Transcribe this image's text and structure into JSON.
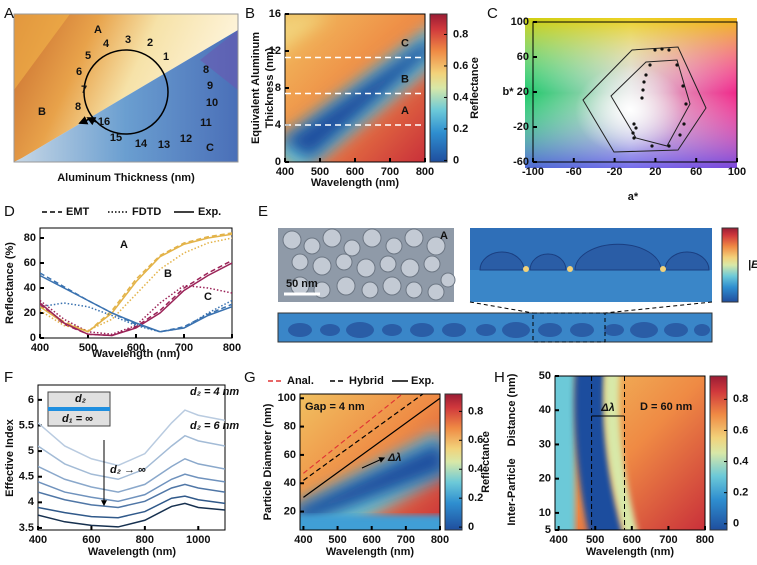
{
  "panel_a": {
    "label": "A",
    "markers": [
      "1",
      "2",
      "3",
      "4",
      "5",
      "6",
      "7",
      "8",
      "16",
      "15",
      "14",
      "13",
      "12",
      "11",
      "10",
      "9",
      "8"
    ],
    "regions": [
      "A",
      "B",
      "C"
    ],
    "x_label": "Aluminum Thickness (nm)"
  },
  "panel_b": {
    "label": "B",
    "x_label": "Wavelength (nm)",
    "y_label": [
      "Equivalent Aluminum",
      "Thickness (nm)"
    ],
    "xlim": [
      400,
      800
    ],
    "xticks": [
      400,
      500,
      600,
      700,
      800
    ],
    "ylim": [
      0,
      16
    ],
    "yticks": [
      0,
      4,
      8,
      12,
      16
    ],
    "boundaries": [
      11.3,
      7.4,
      4.0
    ],
    "regions": [
      "C",
      "B",
      "A"
    ],
    "colorbar": {
      "label": "Reflectance",
      "clim": [
        -0.01,
        0.93
      ],
      "cticks": [
        0,
        0.2,
        0.4,
        0.6,
        0.8
      ]
    }
  },
  "panel_c": {
    "label": "C",
    "x_label": "a*",
    "y_label": "b*",
    "xlim": [
      -100,
      100
    ],
    "xticks": [
      -100,
      -60,
      -20,
      20,
      60,
      100
    ],
    "ylim": [
      -60,
      100
    ],
    "yticks": [
      -60,
      -20,
      20,
      60,
      100
    ]
  },
  "panel_d": {
    "label": "D",
    "x_label": "Wavelength (nm)",
    "y_label": "Reflectance (%)",
    "xlim": [
      400,
      800
    ],
    "xticks": [
      400,
      500,
      600,
      700,
      800
    ],
    "ylim": [
      0,
      88
    ],
    "yticks": [
      0,
      20,
      40,
      60,
      80
    ],
    "samples": [
      {
        "label": "A",
        "color": "#e3b349"
      },
      {
        "label": "B",
        "color": "#9b2358"
      },
      {
        "label": "C",
        "color": "#3a72b0"
      }
    ],
    "x": [
      400,
      450,
      500,
      550,
      600,
      650,
      700,
      750,
      800
    ],
    "series": [
      {
        "name": "EMT",
        "dash": "5,3",
        "values": [
          [
            26,
            13,
            5,
            22,
            47,
            66,
            76,
            81,
            84
          ],
          [
            27,
            11,
            3,
            2,
            9,
            22,
            40,
            52,
            62
          ],
          [
            52,
            41,
            30,
            20,
            11,
            5,
            9,
            19,
            27
          ]
        ]
      },
      {
        "name": "FDTD",
        "dash": "1.5,2",
        "values": [
          [
            22,
            10,
            6,
            15,
            35,
            55,
            68,
            76,
            80
          ],
          [
            30,
            15,
            5,
            3,
            10,
            28,
            42,
            40,
            36
          ],
          [
            25,
            28,
            25,
            18,
            10,
            5,
            8,
            20,
            30
          ]
        ]
      },
      {
        "name": "Exp.",
        "dash": "none",
        "values": [
          [
            25,
            12,
            5,
            20,
            45,
            65,
            75,
            80,
            83
          ],
          [
            28,
            12,
            3,
            2,
            8,
            20,
            38,
            50,
            60
          ],
          [
            50,
            40,
            30,
            20,
            12,
            5,
            8,
            18,
            25
          ]
        ]
      }
    ]
  },
  "panel_e": {
    "label": "E",
    "sample": "A",
    "scale_bar": "50 nm",
    "colorbar_label": "|E|"
  },
  "panel_f": {
    "label": "F",
    "x_label": "Wavelength (nm)",
    "y_label": "Effective Index",
    "xlim": [
      400,
      1100
    ],
    "xticks": [
      400,
      600,
      800,
      1000
    ],
    "ylim": [
      3.46,
      6.29
    ],
    "yticks": [
      3.5,
      4,
      4.5,
      5,
      5.5,
      6
    ],
    "x": [
      400,
      500,
      600,
      700,
      800,
      900,
      950,
      1000,
      1100
    ],
    "curves": [
      [
        5.55,
        5.1,
        4.85,
        4.72,
        4.95,
        5.55,
        5.8,
        5.7,
        5.6
      ],
      [
        5.1,
        4.75,
        4.55,
        4.45,
        4.65,
        5.1,
        5.3,
        5.2,
        5.1
      ],
      [
        4.7,
        4.45,
        4.3,
        4.2,
        4.35,
        4.7,
        4.85,
        4.75,
        4.65
      ],
      [
        4.4,
        4.2,
        4.1,
        4.02,
        4.15,
        4.45,
        4.55,
        4.48,
        4.4
      ],
      [
        4.2,
        4.05,
        3.95,
        3.9,
        4.02,
        4.28,
        4.35,
        4.28,
        4.2
      ],
      [
        3.9,
        3.8,
        3.72,
        3.7,
        3.82,
        4.08,
        4.12,
        4.05,
        3.98
      ],
      [
        3.75,
        3.62,
        3.55,
        3.52,
        3.65,
        3.92,
        3.98,
        3.9,
        3.85
      ]
    ],
    "colors": [
      "#b9cbe0",
      "#a3bbd6",
      "#8aa8cb",
      "#6f92bd",
      "#4f76a6",
      "#30598a",
      "#16304f"
    ],
    "annotations": [
      "d₂ = 4 nm",
      "d₂ = 6 nm",
      "d₂ → ∞"
    ],
    "inset": [
      "d₂",
      "d₁ = ∞"
    ]
  },
  "panel_g": {
    "label": "G",
    "x_label": "Wavelength (nm)",
    "y_label": "Particle Diameter (nm)",
    "xlim": [
      390,
      800
    ],
    "xticks": [
      400,
      500,
      600,
      700,
      800
    ],
    "ylim": [
      7,
      103
    ],
    "yticks": [
      20,
      40,
      60,
      80,
      100
    ],
    "annotation": "Gap = 4 nm",
    "shift_label": "Δλ",
    "lines": [
      {
        "name": "Anal.",
        "color": "#e03535",
        "dash": "5,3",
        "x": [
          400,
          690
        ],
        "y": [
          47,
          103
        ]
      },
      {
        "name": "Hybrid",
        "color": "#000000",
        "dash": "5,3",
        "x": [
          400,
          750
        ],
        "y": [
          42,
          103
        ]
      },
      {
        "name": "Exp.",
        "color": "#000000",
        "dash": "none",
        "x": [
          400,
          800
        ],
        "y": [
          30,
          100
        ]
      }
    ],
    "colorbar": {
      "label": "Reflectance",
      "clim": [
        -0.02,
        0.92
      ],
      "cticks": [
        0,
        0.2,
        0.4,
        0.6,
        0.8
      ]
    }
  },
  "panel_h": {
    "label": "H",
    "x_label": "Wavelength (nm)",
    "y_label": [
      "Inter-Particle",
      "Distance (nm)"
    ],
    "xlim": [
      390,
      800
    ],
    "xticks": [
      400,
      500,
      600,
      700,
      800
    ],
    "ylim": [
      5,
      50
    ],
    "yticks": [
      5,
      10,
      20,
      30,
      40,
      50
    ],
    "annotation": "D = 60 nm",
    "shift_label": "Δλ",
    "markers": [
      490,
      580
    ],
    "colorbar": {
      "clim": [
        -0.04,
        0.95
      ],
      "cticks": [
        0,
        0.2,
        0.4,
        0.6,
        0.8
      ]
    }
  }
}
